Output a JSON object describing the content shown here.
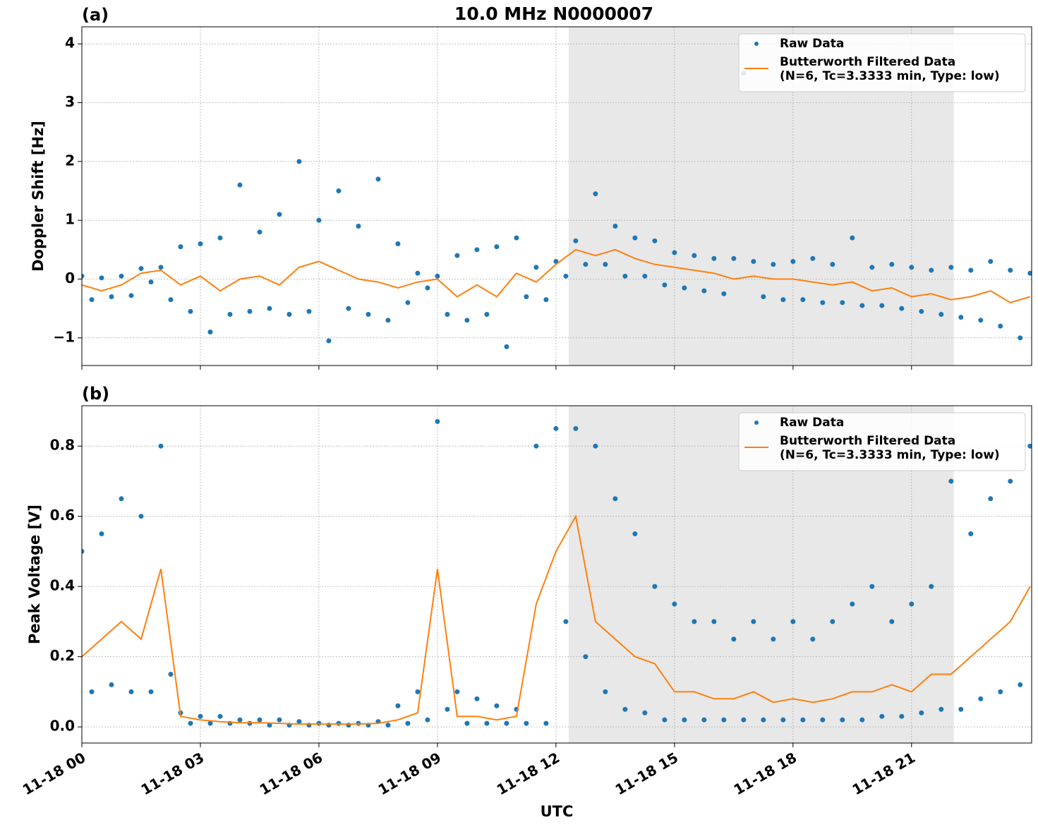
{
  "chart_data": [
    {
      "type": "line",
      "title": "10.0 MHz N0000007",
      "label": "(a)",
      "ylabel": "Doppler Shift [Hz]",
      "xlim": [
        0,
        24.04
      ],
      "ylim": [
        -1.47,
        4.29
      ],
      "yticks": [
        {
          "value": -1,
          "label": "−1"
        },
        0,
        1,
        2,
        3,
        4
      ],
      "grid": true,
      "legend": "upper right",
      "shade": [
        12.32,
        22.07
      ],
      "shade_color": "#e8e8e8",
      "series": [
        {
          "name": "Raw Data",
          "type": "scatter",
          "color": "#1f77b4",
          "x": [
            0,
            0.25,
            0.5,
            0.75,
            1,
            1.25,
            1.5,
            1.75,
            2,
            2.25,
            2.5,
            2.75,
            3,
            3.25,
            3.5,
            3.75,
            4,
            4.25,
            4.5,
            4.75,
            5,
            5.25,
            5.5,
            5.75,
            6,
            6.25,
            6.5,
            6.75,
            7,
            7.25,
            7.5,
            7.75,
            8,
            8.25,
            8.5,
            8.75,
            9,
            9.25,
            9.5,
            9.75,
            10,
            10.25,
            10.5,
            10.75,
            11,
            11.25,
            11.5,
            11.75,
            12,
            12.25,
            12.5,
            12.75,
            13,
            13.25,
            13.5,
            13.75,
            14,
            14.25,
            14.5,
            14.75,
            15,
            15.25,
            15.5,
            15.75,
            16,
            16.25,
            16.5,
            16.75,
            17,
            17.25,
            17.5,
            17.75,
            18,
            18.25,
            18.5,
            18.75,
            19,
            19.25,
            19.5,
            19.75,
            20,
            20.25,
            20.5,
            20.75,
            21,
            21.25,
            21.5,
            21.75,
            22,
            22.25,
            22.5,
            22.75,
            23,
            23.25,
            23.5,
            23.75,
            24
          ],
          "values": [
            0.05,
            -0.35,
            0.02,
            -0.3,
            0.05,
            -0.28,
            0.18,
            -0.05,
            0.2,
            -0.35,
            0.55,
            -0.55,
            0.6,
            -0.9,
            0.7,
            -0.6,
            1.6,
            -0.55,
            0.8,
            -0.5,
            1.1,
            -0.6,
            2.0,
            -0.55,
            1.0,
            -1.05,
            1.5,
            -0.5,
            0.9,
            -0.6,
            1.7,
            -0.7,
            0.6,
            -0.4,
            0.1,
            -0.15,
            0.05,
            -0.6,
            0.4,
            -0.7,
            0.5,
            -0.6,
            0.55,
            -1.15,
            0.7,
            -0.3,
            0.2,
            -0.35,
            0.3,
            0.05,
            0.65,
            0.25,
            1.45,
            0.25,
            0.9,
            0.05,
            0.7,
            0.05,
            0.65,
            -0.1,
            0.45,
            -0.15,
            0.4,
            -0.2,
            0.35,
            -0.25,
            0.35,
            3.5,
            0.3,
            -0.3,
            0.25,
            -0.35,
            0.3,
            -0.35,
            0.35,
            -0.4,
            0.25,
            -0.4,
            0.7,
            -0.45,
            0.2,
            -0.45,
            0.25,
            -0.5,
            0.2,
            -0.55,
            0.15,
            -0.6,
            0.2,
            -0.65,
            0.15,
            -0.7,
            0.3,
            -0.8,
            0.15,
            -1.0,
            0.1
          ]
        },
        {
          "name": "Butterworth Filtered Data\n(N=6, Tc=3.3333 min, Type: low)",
          "type": "line",
          "color": "#ff7f0e",
          "x": [
            0,
            0.5,
            1,
            1.5,
            2,
            2.5,
            3,
            3.5,
            4,
            4.5,
            5,
            5.5,
            6,
            6.5,
            7,
            7.5,
            8,
            8.5,
            9,
            9.5,
            10,
            10.5,
            11,
            11.5,
            12,
            12.5,
            13,
            13.5,
            14,
            14.5,
            15,
            15.5,
            16,
            16.5,
            17,
            17.5,
            18,
            18.5,
            19,
            19.5,
            20,
            20.5,
            21,
            21.5,
            22,
            22.5,
            23,
            23.5,
            24
          ],
          "values": [
            -0.1,
            -0.2,
            -0.1,
            0.1,
            0.15,
            -0.1,
            0.05,
            -0.2,
            0.0,
            0.05,
            -0.1,
            0.2,
            0.3,
            0.15,
            0.0,
            -0.05,
            -0.15,
            -0.05,
            0.0,
            -0.3,
            -0.1,
            -0.3,
            0.1,
            -0.05,
            0.25,
            0.5,
            0.4,
            0.5,
            0.35,
            0.25,
            0.2,
            0.15,
            0.1,
            0.0,
            0.05,
            0.0,
            0.0,
            -0.05,
            -0.1,
            -0.05,
            -0.2,
            -0.15,
            -0.3,
            -0.25,
            -0.35,
            -0.3,
            -0.2,
            -0.4,
            -0.3
          ]
        }
      ]
    },
    {
      "type": "line",
      "label": "(b)",
      "ylabel": "Peak Voltage [V]",
      "xlabel": "UTC",
      "xlim": [
        0,
        24.04
      ],
      "ylim": [
        -0.046,
        0.915
      ],
      "xticks": [
        {
          "value": 0,
          "label": "11-18 00"
        },
        {
          "value": 3,
          "label": "11-18 03"
        },
        {
          "value": 6,
          "label": "11-18 06"
        },
        {
          "value": 9,
          "label": "11-18 09"
        },
        {
          "value": 12,
          "label": "11-18 12"
        },
        {
          "value": 15,
          "label": "11-18 15"
        },
        {
          "value": 18,
          "label": "11-18 18"
        },
        {
          "value": 21,
          "label": "11-18 21"
        }
      ],
      "yticks": [
        {
          "value": 0,
          "label": "0.0"
        },
        0.2,
        0.4,
        0.6,
        0.8
      ],
      "grid": true,
      "legend": "upper right",
      "shade": [
        12.32,
        22.07
      ],
      "shade_color": "#e8e8e8",
      "series": [
        {
          "name": "Raw Data",
          "type": "scatter",
          "color": "#1f77b4",
          "x": [
            0,
            0.25,
            0.5,
            0.75,
            1,
            1.25,
            1.5,
            1.75,
            2,
            2.25,
            2.5,
            2.75,
            3,
            3.25,
            3.5,
            3.75,
            4,
            4.25,
            4.5,
            4.75,
            5,
            5.25,
            5.5,
            5.75,
            6,
            6.25,
            6.5,
            6.75,
            7,
            7.25,
            7.5,
            7.75,
            8,
            8.25,
            8.5,
            8.75,
            9,
            9.25,
            9.5,
            9.75,
            10,
            10.25,
            10.5,
            10.75,
            11,
            11.25,
            11.5,
            11.75,
            12,
            12.25,
            12.5,
            12.75,
            13,
            13.25,
            13.5,
            13.75,
            14,
            14.25,
            14.5,
            14.75,
            15,
            15.25,
            15.5,
            15.75,
            16,
            16.25,
            16.5,
            16.75,
            17,
            17.25,
            17.5,
            17.75,
            18,
            18.25,
            18.5,
            18.75,
            19,
            19.25,
            19.5,
            19.75,
            20,
            20.25,
            20.5,
            20.75,
            21,
            21.25,
            21.5,
            21.75,
            22,
            22.25,
            22.5,
            22.75,
            23,
            23.25,
            23.5,
            23.75,
            24
          ],
          "values": [
            0.5,
            0.1,
            0.55,
            0.12,
            0.65,
            0.1,
            0.6,
            0.1,
            0.8,
            0.15,
            0.04,
            0.01,
            0.03,
            0.01,
            0.03,
            0.01,
            0.02,
            0.01,
            0.02,
            0.005,
            0.02,
            0.005,
            0.015,
            0.005,
            0.01,
            0.005,
            0.01,
            0.005,
            0.01,
            0.005,
            0.015,
            0.005,
            0.06,
            0.01,
            0.1,
            0.02,
            0.87,
            0.05,
            0.1,
            0.01,
            0.08,
            0.01,
            0.06,
            0.01,
            0.05,
            0.01,
            0.8,
            0.01,
            0.85,
            0.3,
            0.85,
            0.2,
            0.8,
            0.1,
            0.65,
            0.05,
            0.55,
            0.04,
            0.4,
            0.02,
            0.35,
            0.02,
            0.3,
            0.02,
            0.3,
            0.02,
            0.25,
            0.02,
            0.3,
            0.02,
            0.25,
            0.02,
            0.3,
            0.02,
            0.25,
            0.02,
            0.3,
            0.02,
            0.35,
            0.02,
            0.4,
            0.03,
            0.3,
            0.03,
            0.35,
            0.04,
            0.4,
            0.05,
            0.7,
            0.05,
            0.55,
            0.08,
            0.65,
            0.1,
            0.7,
            0.12,
            0.8
          ]
        },
        {
          "name": "Butterworth Filtered Data\n(N=6, Tc=3.3333 min, Type: low)",
          "type": "line",
          "color": "#ff7f0e",
          "x": [
            0,
            0.5,
            1,
            1.5,
            2,
            2.5,
            3,
            3.5,
            4,
            4.5,
            5,
            5.5,
            6,
            6.5,
            7,
            7.5,
            8,
            8.5,
            9,
            9.5,
            10,
            10.5,
            11,
            11.5,
            12,
            12.5,
            13,
            13.5,
            14,
            14.5,
            15,
            15.5,
            16,
            16.5,
            17,
            17.5,
            18,
            18.5,
            19,
            19.5,
            20,
            20.5,
            21,
            21.5,
            22,
            22.5,
            23,
            23.5,
            24
          ],
          "values": [
            0.2,
            0.25,
            0.3,
            0.25,
            0.45,
            0.03,
            0.02,
            0.015,
            0.012,
            0.012,
            0.01,
            0.008,
            0.008,
            0.008,
            0.008,
            0.01,
            0.02,
            0.04,
            0.45,
            0.03,
            0.03,
            0.02,
            0.03,
            0.35,
            0.5,
            0.6,
            0.3,
            0.25,
            0.2,
            0.18,
            0.1,
            0.1,
            0.08,
            0.08,
            0.1,
            0.07,
            0.08,
            0.07,
            0.08,
            0.1,
            0.1,
            0.12,
            0.1,
            0.15,
            0.15,
            0.2,
            0.25,
            0.3,
            0.4
          ]
        }
      ]
    }
  ]
}
